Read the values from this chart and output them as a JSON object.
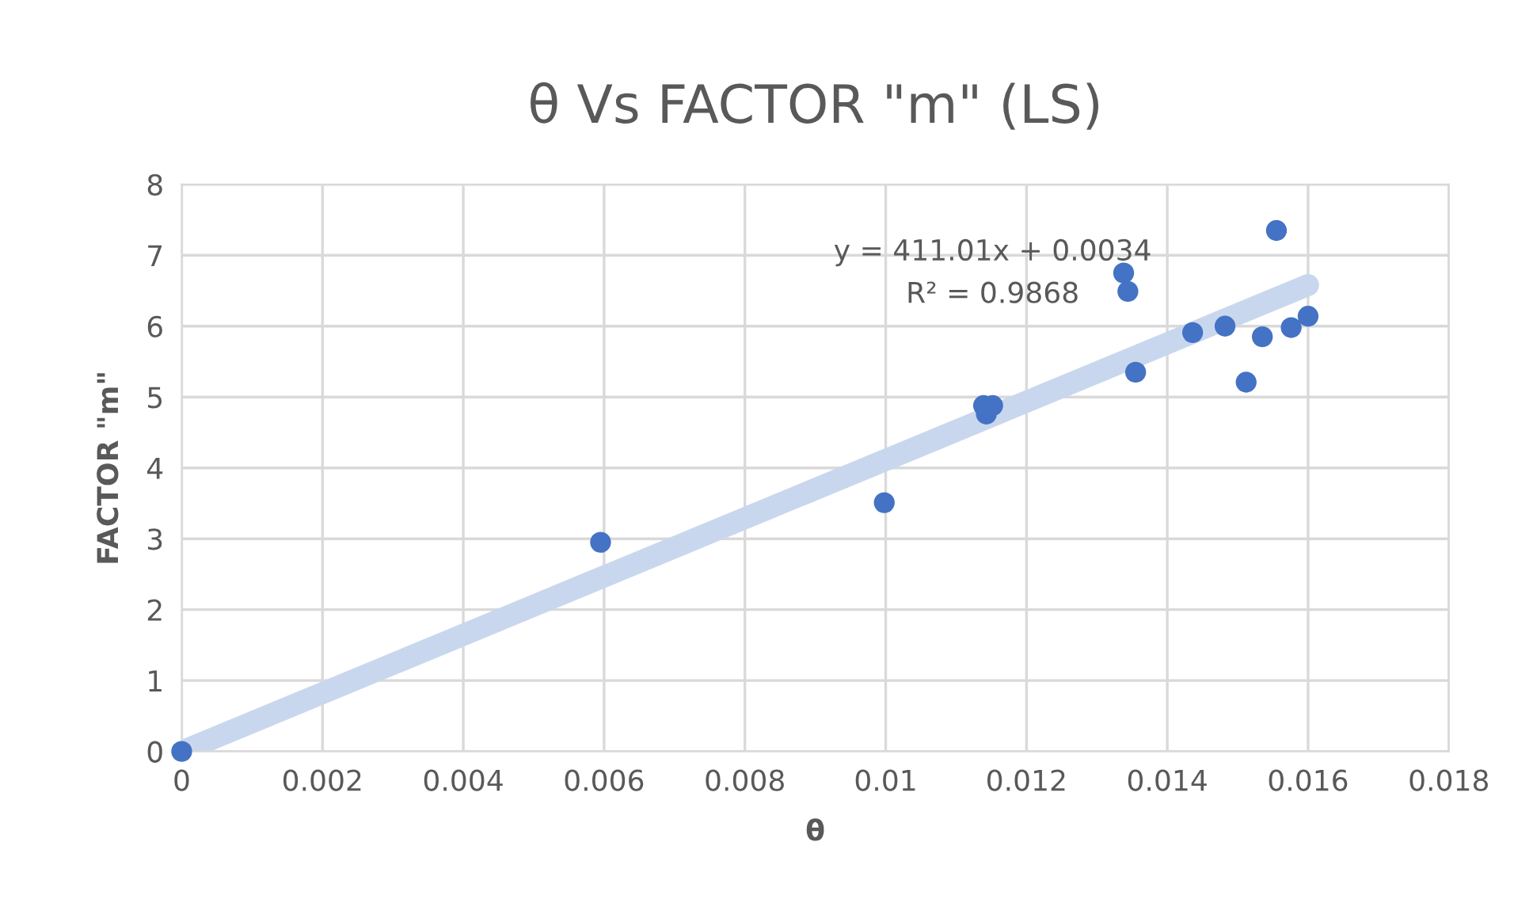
{
  "chart_data": {
    "type": "scatter",
    "title": "θ Vs FACTOR \"m\" (LS)",
    "xlabel": "θ",
    "ylabel": "FACTOR \"m\"",
    "series": [
      {
        "type": "line",
        "marker": "none",
        "color": "#c9d7ee",
        "x": [
          0,
          0.016
        ],
        "values": [
          0,
          6.58
        ]
      },
      {
        "marker": "circle",
        "color": "#4472c4",
        "x": [
          0,
          0.00595,
          0.00998,
          0.01139,
          0.01152,
          0.01143,
          0.01338,
          0.01344,
          0.01355,
          0.01436,
          0.01482,
          0.01512,
          0.01535,
          0.01555,
          0.01576,
          0.016
        ],
        "values": [
          0,
          2.95,
          3.51,
          4.88,
          4.88,
          4.76,
          6.75,
          6.49,
          5.35,
          5.91,
          6.0,
          5.21,
          5.85,
          7.35,
          5.98,
          6.14
        ]
      }
    ],
    "annotations": [
      "y = 411.01x + 0.0034",
      "R² = 0.9868"
    ],
    "xlim": [
      0,
      0.018
    ],
    "xticks": [
      0,
      0.002,
      0.004,
      0.006,
      0.008,
      0.01,
      0.012,
      0.014,
      0.016,
      0.018
    ],
    "ylim": [
      0,
      8
    ],
    "yticks": [
      0,
      1,
      2,
      3,
      4,
      5,
      6,
      7,
      8
    ],
    "grid": true,
    "legend": false
  }
}
